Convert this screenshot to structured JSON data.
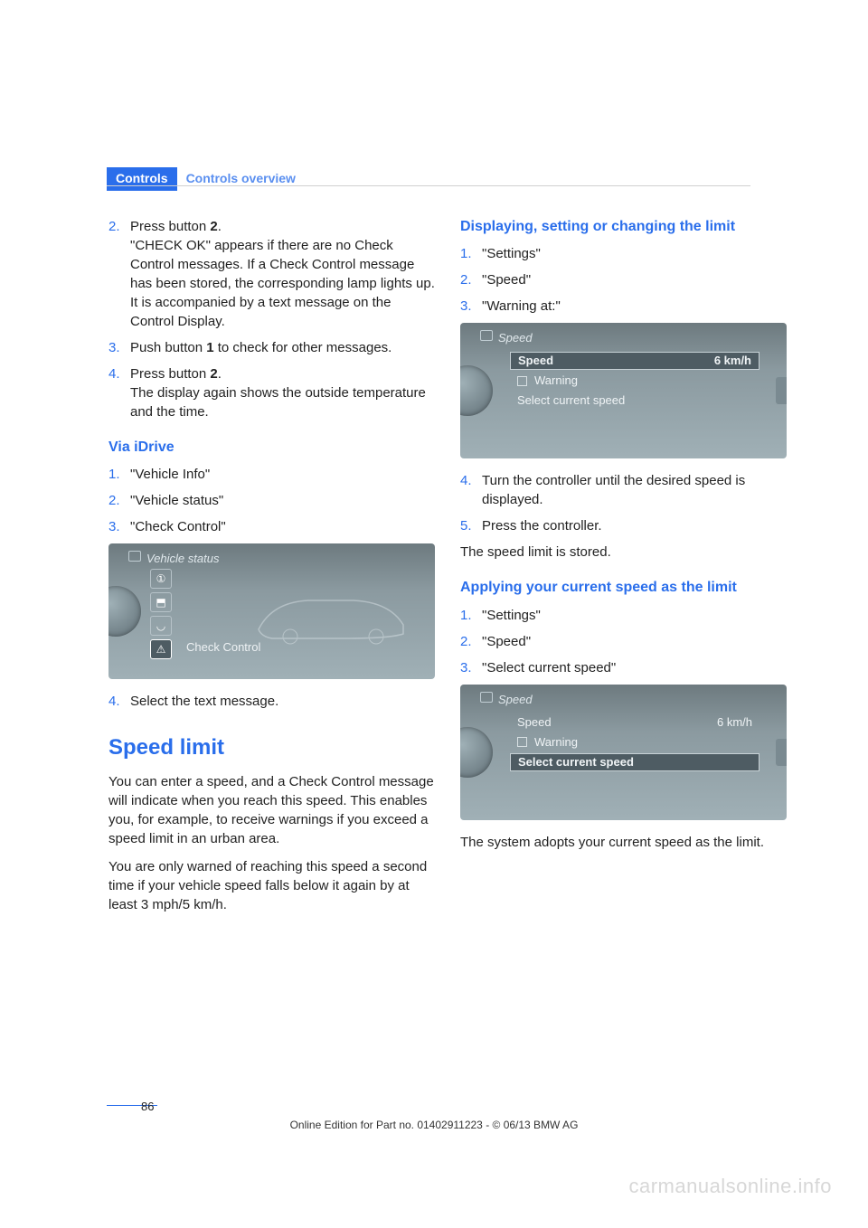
{
  "header": {
    "tab": "Controls",
    "breadcrumb": "Controls overview"
  },
  "left": {
    "steps_a": [
      {
        "n": "2.",
        "html": "Press button <b>2</b>.<br>\"CHECK OK\" appears if there are no Check Control messages. If a Check Control message has been stored, the corresponding lamp lights up. It is accompanied by a text message on the Control Display."
      },
      {
        "n": "3.",
        "html": "Push button <b>1</b> to check for other messages."
      },
      {
        "n": "4.",
        "html": "Press button <b>2</b>.<br>The display again shows the outside temperature and the time."
      }
    ],
    "sub1": "Via iDrive",
    "steps_b": [
      {
        "n": "1.",
        "html": "\"Vehicle Info\""
      },
      {
        "n": "2.",
        "html": "\"Vehicle status\""
      },
      {
        "n": "3.",
        "html": "\"Check Control\""
      }
    ],
    "ss1": {
      "title": "Vehicle status",
      "cc": "Check Control"
    },
    "steps_c": [
      {
        "n": "4.",
        "html": "Select the text message."
      }
    ],
    "section": "Speed limit",
    "para1": "You can enter a speed, and a Check Control message will indicate when you reach this speed. This enables you, for example, to receive warnings if you exceed a speed limit in an urban area.",
    "para2": "You are only warned of reaching this speed a second time if your vehicle speed falls below it again by at least 3 mph/5 km/h."
  },
  "right": {
    "sub1": "Displaying, setting or changing the limit",
    "steps_a": [
      {
        "n": "1.",
        "html": "\"Settings\""
      },
      {
        "n": "2.",
        "html": "\"Speed\""
      },
      {
        "n": "3.",
        "html": "\"Warning at:\""
      }
    ],
    "ss1": {
      "title": "Speed",
      "row1": "Speed",
      "row1v": "6 km/h",
      "row2": "Warning",
      "row3": "Select current speed"
    },
    "steps_b": [
      {
        "n": "4.",
        "html": "Turn the controller until the desired speed is displayed."
      },
      {
        "n": "5.",
        "html": "Press the controller."
      }
    ],
    "para1": "The speed limit is stored.",
    "sub2": "Applying your current speed as the limit",
    "steps_c": [
      {
        "n": "1.",
        "html": "\"Settings\""
      },
      {
        "n": "2.",
        "html": "\"Speed\""
      },
      {
        "n": "3.",
        "html": "\"Select current speed\""
      }
    ],
    "ss2": {
      "title": "Speed",
      "row1": "Speed",
      "row1v": "6 km/h",
      "row2": "Warning",
      "row3": "Select current speed"
    },
    "para2": "The system adopts your current speed as the limit."
  },
  "page_number": "86",
  "footer": "Online Edition for Part no. 01402911223 - © 06/13 BMW AG",
  "watermark": "carmanualsonline.info"
}
